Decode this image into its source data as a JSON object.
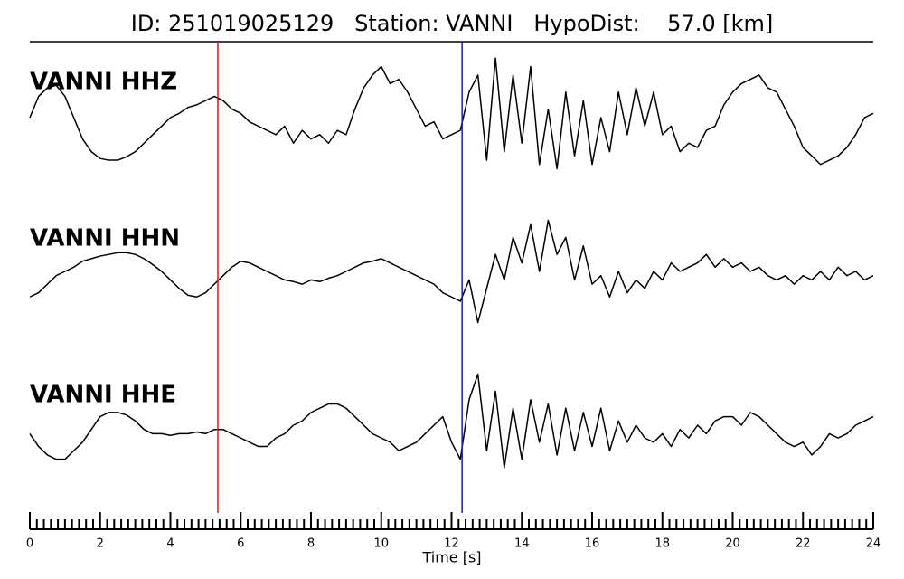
{
  "chart_data": {
    "type": "line",
    "title": "ID: 251019025129   Station: VANNI   HypoDist:    57.0 [km]",
    "xlabel": "Time [s]",
    "xlim": [
      0,
      24
    ],
    "xticks": [
      0,
      2,
      4,
      6,
      8,
      10,
      12,
      14,
      16,
      18,
      20,
      22,
      24
    ],
    "xminorticks": [
      0.2,
      0.4,
      0.6,
      0.8,
      1,
      1.2,
      1.4,
      1.6,
      1.8,
      2.2,
      2.4,
      2.6,
      2.8,
      3,
      3.2,
      3.4,
      3.6,
      3.8,
      4.2,
      4.4,
      4.6,
      4.8,
      5,
      5.2,
      5.4,
      5.6,
      5.8,
      6.2,
      6.4,
      6.6,
      6.8,
      7,
      7.2,
      7.4,
      7.6,
      7.8,
      8.2,
      8.4,
      8.6,
      8.8,
      9,
      9.2,
      9.4,
      9.6,
      9.8,
      10.2,
      10.4,
      10.6,
      10.8,
      11,
      11.2,
      11.4,
      11.6,
      11.8,
      12.2,
      12.4,
      12.6,
      12.8,
      13,
      13.2,
      13.4,
      13.6,
      13.8,
      14.2,
      14.4,
      14.6,
      14.8,
      15,
      15.2,
      15.4,
      15.6,
      15.8,
      16.2,
      16.4,
      16.6,
      16.8,
      17,
      17.2,
      17.4,
      17.6,
      17.8,
      18.2,
      18.4,
      18.6,
      18.8,
      19,
      19.2,
      19.4,
      19.6,
      19.8,
      20.2,
      20.4,
      20.6,
      20.8,
      21,
      21.2,
      21.4,
      21.6,
      21.8,
      22.2,
      22.4,
      22.6,
      22.8,
      23,
      23.2,
      23.4,
      23.6,
      23.8
    ],
    "ylim": [
      -85,
      85
    ],
    "label_color": "#4c9a0a",
    "markers": [
      {
        "x": 5.35,
        "color": "#e8141c"
      },
      {
        "x": 12.3,
        "color": "#1a1adc"
      }
    ],
    "x": [
      0,
      0.25,
      0.5,
      0.75,
      1,
      1.25,
      1.5,
      1.75,
      2,
      2.25,
      2.5,
      2.75,
      3,
      3.25,
      3.5,
      3.75,
      4,
      4.25,
      4.5,
      4.75,
      5,
      5.25,
      5.5,
      5.75,
      6,
      6.25,
      6.5,
      6.75,
      7,
      7.25,
      7.5,
      7.75,
      8,
      8.25,
      8.5,
      8.75,
      9,
      9.25,
      9.5,
      9.75,
      10,
      10.25,
      10.5,
      10.75,
      11,
      11.25,
      11.5,
      11.75,
      12,
      12.25,
      12.5,
      12.75,
      13,
      13.25,
      13.5,
      13.75,
      14,
      14.25,
      14.5,
      14.75,
      15,
      15.25,
      15.5,
      15.75,
      16,
      16.25,
      16.5,
      16.75,
      17,
      17.25,
      17.5,
      17.75,
      18,
      18.25,
      18.5,
      18.75,
      19,
      19.25,
      19.5,
      19.75,
      20,
      20.25,
      20.5,
      20.75,
      21,
      21.25,
      21.5,
      21.75,
      22,
      22.25,
      22.5,
      22.75,
      23,
      23.25,
      23.5,
      23.75,
      24
    ],
    "series": [
      {
        "name": "VANNI HHZ",
        "color": "#000000",
        "values": [
          0,
          25,
          35,
          38,
          25,
          0,
          -25,
          -40,
          -48,
          -50,
          -50,
          -46,
          -40,
          -30,
          -20,
          -10,
          0,
          5,
          12,
          15,
          20,
          25,
          20,
          10,
          5,
          -5,
          -10,
          -15,
          -20,
          -10,
          -30,
          -15,
          -25,
          -20,
          -30,
          -15,
          -20,
          10,
          35,
          50,
          60,
          40,
          45,
          30,
          10,
          -10,
          -5,
          -25,
          -20,
          -15,
          30,
          50,
          -50,
          70,
          -40,
          50,
          -30,
          60,
          -55,
          10,
          -60,
          30,
          -45,
          20,
          -55,
          0,
          -40,
          30,
          -20,
          35,
          -10,
          30,
          -20,
          -10,
          -40,
          -30,
          -35,
          -15,
          -10,
          15,
          30,
          40,
          45,
          50,
          35,
          30,
          10,
          -10,
          -35,
          -45,
          -55,
          -50,
          -45,
          -35,
          -20,
          0,
          5
        ]
      },
      {
        "name": "VANNI HHN",
        "color": "#000000",
        "values": [
          -30,
          -25,
          -15,
          -5,
          0,
          5,
          12,
          15,
          18,
          20,
          22,
          22,
          20,
          15,
          8,
          0,
          -10,
          -20,
          -28,
          -30,
          -25,
          -15,
          -5,
          5,
          12,
          10,
          5,
          0,
          -5,
          -10,
          -12,
          -15,
          -10,
          -12,
          -8,
          -5,
          0,
          5,
          10,
          12,
          15,
          10,
          5,
          0,
          -5,
          -10,
          -15,
          -25,
          -30,
          -35,
          -10,
          -60,
          -20,
          20,
          -10,
          40,
          10,
          55,
          0,
          60,
          20,
          40,
          -10,
          30,
          -15,
          -5,
          -30,
          0,
          -25,
          -10,
          -20,
          0,
          -10,
          10,
          0,
          5,
          10,
          20,
          5,
          15,
          5,
          10,
          0,
          5,
          -5,
          -10,
          -5,
          -15,
          -5,
          -10,
          0,
          -10,
          5,
          -5,
          0,
          -10,
          -5
        ]
      },
      {
        "name": "VANNI HHE",
        "color": "#000000",
        "values": [
          -10,
          -25,
          -35,
          -40,
          -40,
          -30,
          -20,
          -5,
          10,
          15,
          15,
          12,
          5,
          -5,
          -10,
          -10,
          -12,
          -10,
          -10,
          -8,
          -10,
          -5,
          -5,
          -10,
          -15,
          -20,
          -25,
          -25,
          -15,
          -10,
          0,
          5,
          15,
          20,
          25,
          25,
          20,
          10,
          0,
          -10,
          -15,
          -20,
          -30,
          -25,
          -20,
          -10,
          0,
          10,
          -20,
          -40,
          30,
          60,
          -30,
          40,
          -50,
          20,
          -40,
          30,
          -20,
          25,
          -35,
          20,
          -30,
          15,
          -25,
          20,
          -30,
          5,
          -20,
          0,
          -15,
          -20,
          -10,
          -25,
          -5,
          -15,
          0,
          -10,
          5,
          10,
          10,
          0,
          15,
          10,
          0,
          -10,
          -20,
          -25,
          -20,
          -35,
          -25,
          -10,
          -15,
          -10,
          0,
          5,
          10
        ]
      }
    ]
  }
}
